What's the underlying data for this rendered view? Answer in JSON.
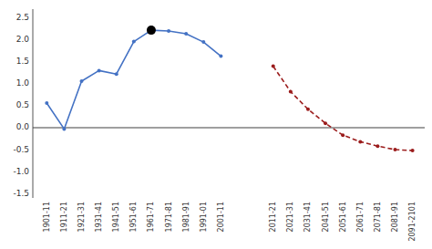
{
  "chart_data": {
    "type": "line",
    "categories": [
      "1901-11",
      "1911-21",
      "1921-31",
      "1931-41",
      "1941-51",
      "1951-61",
      "1961-71",
      "1971-81",
      "1981-91",
      "1991-01",
      "2001-11",
      null,
      null,
      "2011-21",
      "2021-31",
      "2031-41",
      "2041-51",
      "2051-61",
      "2061-71",
      "2071-81",
      "2081-91",
      "2091-2101"
    ],
    "series": [
      {
        "color": "#4472C4",
        "line_style": "solid",
        "marker": "circle",
        "values": [
          0.56,
          -0.03,
          1.06,
          1.3,
          1.22,
          1.96,
          2.22,
          2.2,
          2.14,
          1.95,
          1.63,
          null,
          null,
          null,
          null,
          null,
          null,
          null,
          null,
          null,
          null,
          null
        ]
      },
      {
        "color": "#9B1C1C",
        "line_style": "dashed",
        "marker": "circle",
        "values": [
          null,
          null,
          null,
          null,
          null,
          null,
          null,
          null,
          null,
          null,
          null,
          null,
          null,
          1.4,
          0.82,
          0.42,
          0.1,
          -0.17,
          -0.32,
          -0.42,
          -0.5,
          -0.52
        ]
      },
      {
        "color": "#000000",
        "type": "scatter",
        "marker": "circle",
        "values": [
          null,
          null,
          null,
          null,
          null,
          null,
          2.22,
          null,
          null,
          null,
          null,
          null,
          null,
          null,
          null,
          null,
          null,
          null,
          null,
          null,
          null,
          null
        ]
      }
    ],
    "ylim": [
      -1.6,
      2.7
    ],
    "yticks": [
      -1.5,
      {
        "value": -1.0,
        "label": "-1.0"
      },
      -0.5,
      {
        "value": 0.0,
        "label": "0.0"
      },
      0.5,
      {
        "value": 1.0,
        "label": "1.0"
      },
      1.5,
      {
        "value": 2.0,
        "label": "2.0"
      },
      2.5
    ],
    "grid": false
  }
}
